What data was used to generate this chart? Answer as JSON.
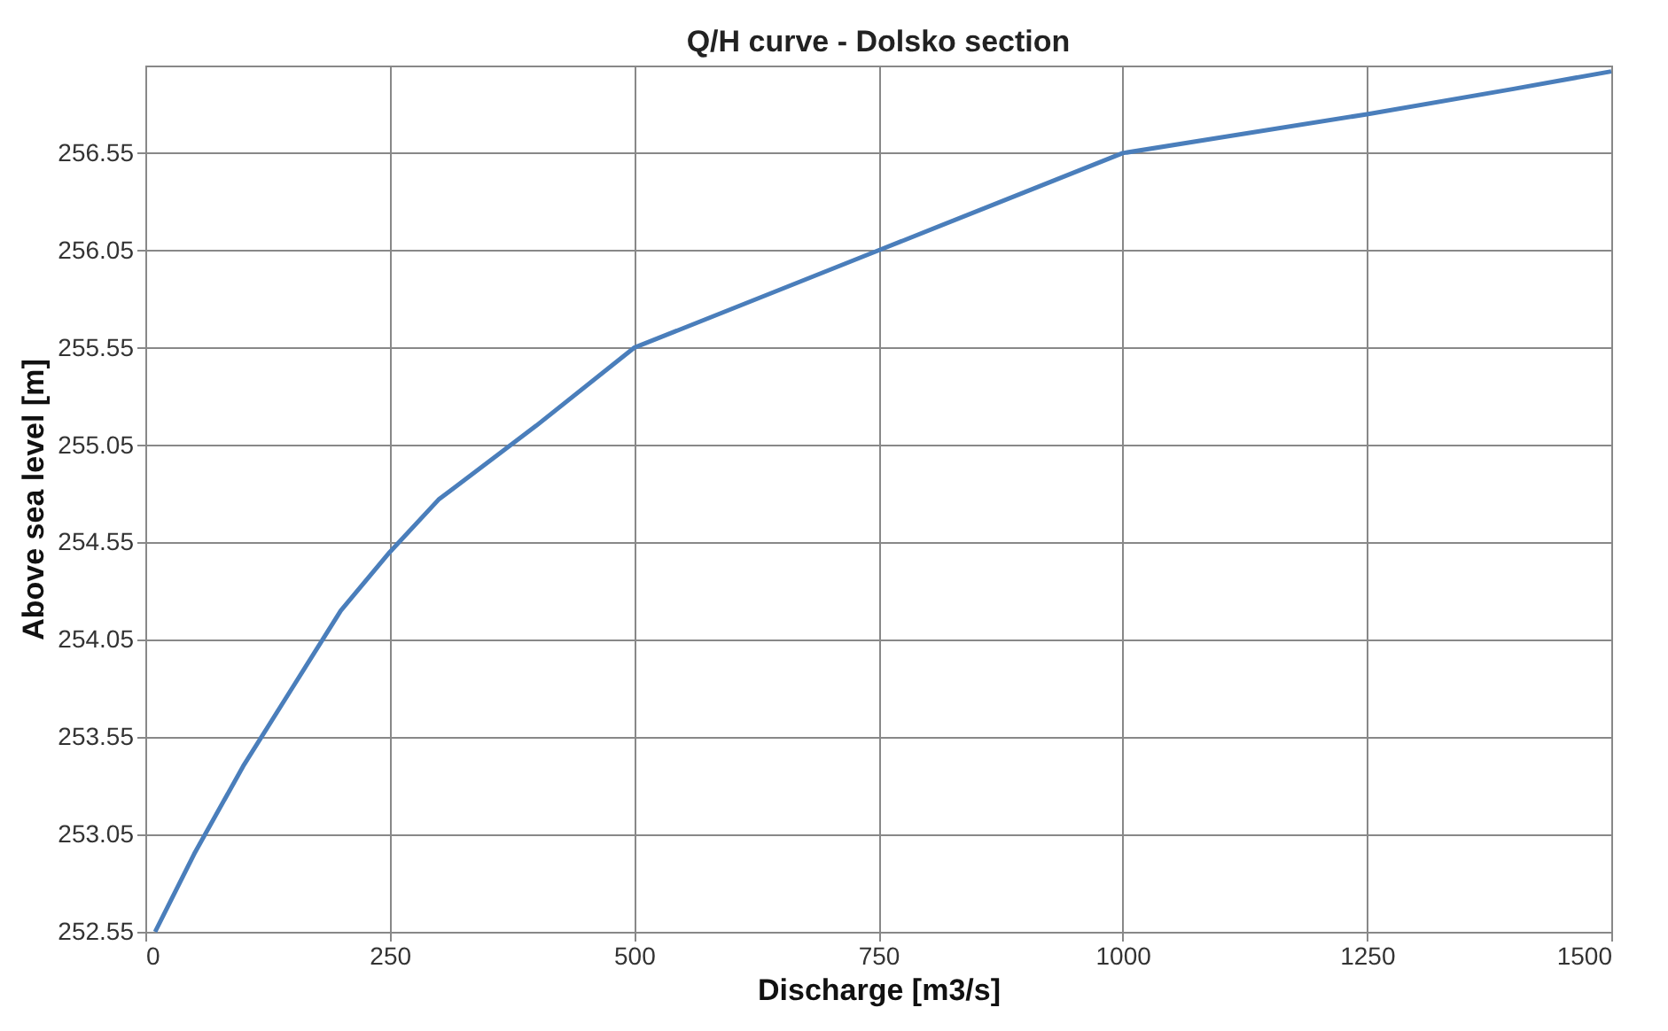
{
  "chart_data": {
    "type": "line",
    "title": "Q/H curve -  Dolsko section",
    "xlabel": "Discharge [m3/s]",
    "ylabel": "Above sea level [m]",
    "x": [
      10,
      50,
      100,
      150,
      200,
      250,
      300,
      400,
      500,
      600,
      750,
      900,
      1000,
      1100,
      1250,
      1400,
      1500
    ],
    "series": [
      {
        "color": "#4a7ebb",
        "values": [
          252.55,
          252.95,
          253.4,
          253.8,
          254.2,
          254.5,
          254.77,
          255.15,
          255.55,
          255.75,
          256.05,
          256.35,
          256.55,
          256.63,
          256.75,
          256.88,
          256.97
        ]
      }
    ],
    "xlim": [
      0,
      1500
    ],
    "xticks": [
      0,
      250,
      500,
      750,
      1000,
      1250,
      1500
    ],
    "ylim": [
      252.55,
      257.0
    ],
    "yticks": [
      252.55,
      253.05,
      253.55,
      254.05,
      254.55,
      255.05,
      255.55,
      256.05,
      256.55
    ],
    "grid": true,
    "marker": "none",
    "line_style": "solid"
  }
}
